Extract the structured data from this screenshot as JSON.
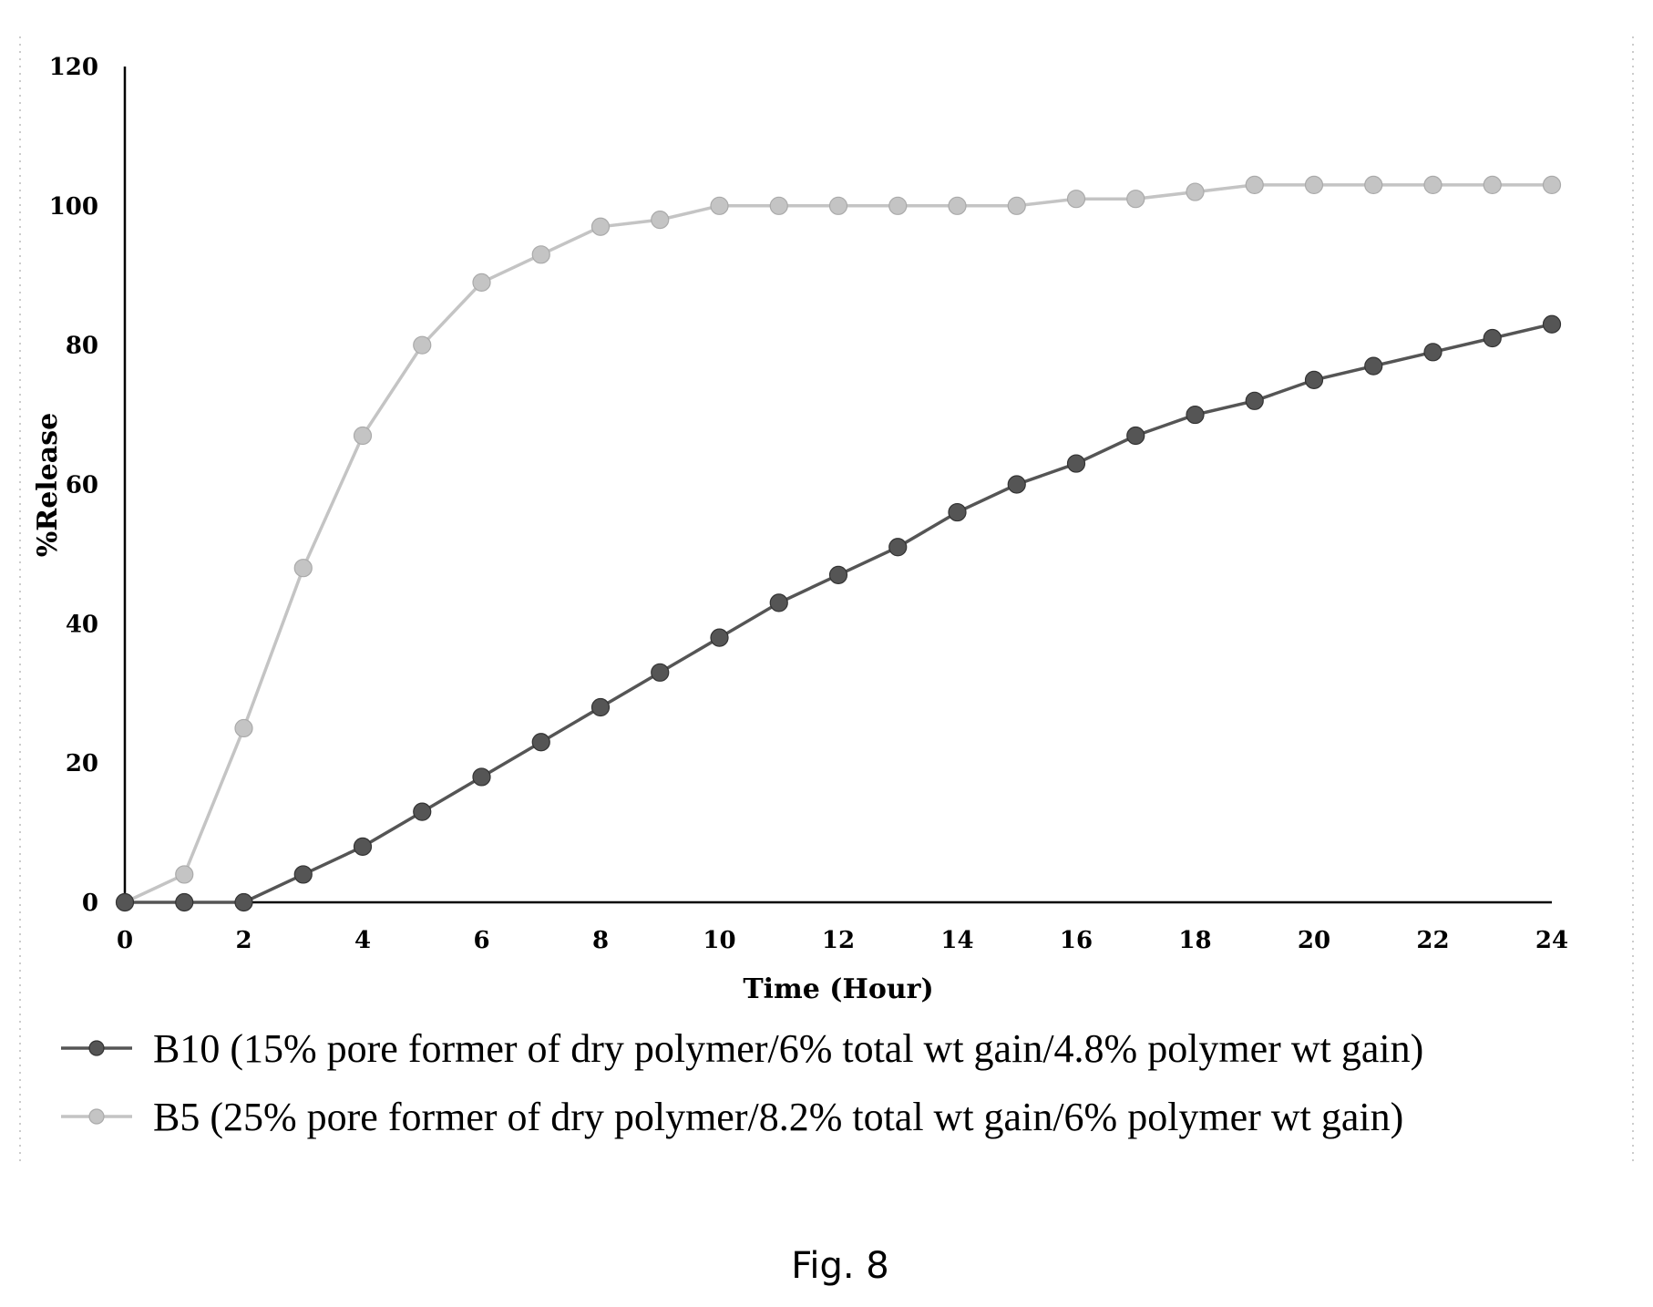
{
  "chart_data": {
    "type": "line",
    "title": "",
    "xlabel": "Time (Hour)",
    "ylabel": "%Release",
    "xlim": [
      0,
      24
    ],
    "ylim": [
      0,
      120
    ],
    "xticks": [
      0,
      2,
      4,
      6,
      8,
      10,
      12,
      14,
      16,
      18,
      20,
      22,
      24
    ],
    "yticks": [
      0,
      20,
      40,
      60,
      80,
      100,
      120
    ],
    "grid": false,
    "legend_position": "bottom",
    "x": [
      0,
      1,
      2,
      3,
      4,
      5,
      6,
      7,
      8,
      9,
      10,
      11,
      12,
      13,
      14,
      15,
      16,
      17,
      18,
      19,
      20,
      21,
      22,
      23,
      24
    ],
    "series": [
      {
        "name": "B10 (15% pore former of dry polymer/6% total wt gain/4.8% polymer wt gain)",
        "color": "#555555",
        "values": [
          0,
          0,
          0,
          4,
          8,
          13,
          18,
          23,
          28,
          33,
          38,
          43,
          47,
          51,
          56,
          60,
          63,
          67,
          70,
          72,
          75,
          77,
          79,
          81,
          83
        ]
      },
      {
        "name": "B5 (25% pore former of dry polymer/8.2% total wt gain/6% polymer wt gain)",
        "color": "#c4c4c4",
        "values": [
          0,
          4,
          25,
          48,
          67,
          80,
          89,
          93,
          97,
          98,
          100,
          100,
          100,
          100,
          100,
          100,
          101,
          101,
          102,
          103,
          103,
          103,
          103,
          103,
          103
        ]
      }
    ]
  },
  "caption": "Fig. 8"
}
